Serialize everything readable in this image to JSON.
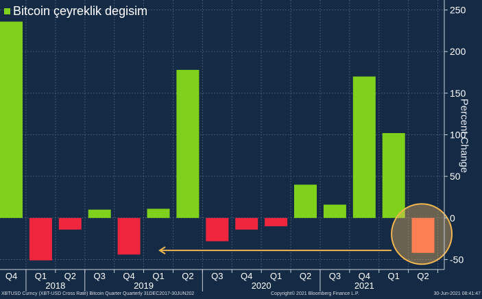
{
  "chart_data": {
    "type": "bar",
    "legend": "Bitcoin çeyreklik degisim",
    "ylabel": "Percent Change",
    "ylim": [
      -62,
      262
    ],
    "yticks": [
      250,
      200,
      150,
      100,
      50,
      0,
      -50
    ],
    "quarter_labels": [
      "Q4",
      "Q1",
      "Q2",
      "Q3",
      "Q4",
      "Q1",
      "Q2",
      "Q3",
      "Q4",
      "Q1",
      "Q2",
      "Q3",
      "Q4",
      "Q1",
      "Q2"
    ],
    "year_labels": [
      {
        "label": "2018",
        "after_index": 2
      },
      {
        "label": "2019",
        "after_index": 6
      },
      {
        "label": "2020",
        "after_index": 10
      },
      {
        "label": "2021",
        "after_index": 13
      }
    ],
    "values": [
      236,
      -51,
      -14,
      10,
      -44,
      11,
      178,
      -28,
      -14,
      -10,
      40,
      16,
      170,
      102,
      -42
    ],
    "positive_color": "#7fd11b",
    "negative_color": "#f0263f",
    "highlight_color": "#ff5a4a",
    "highlight_index": 14
  },
  "footer": {
    "left": "XBTUSD Curncy (XBT-USD Cross Rate) Bitcoin Quarter  Quarterly 31DEC2017-30JUN202",
    "center": "Copyright© 2021 Bloomberg Finance L.P.",
    "right": "30-Jun-2021 08:41:47"
  }
}
